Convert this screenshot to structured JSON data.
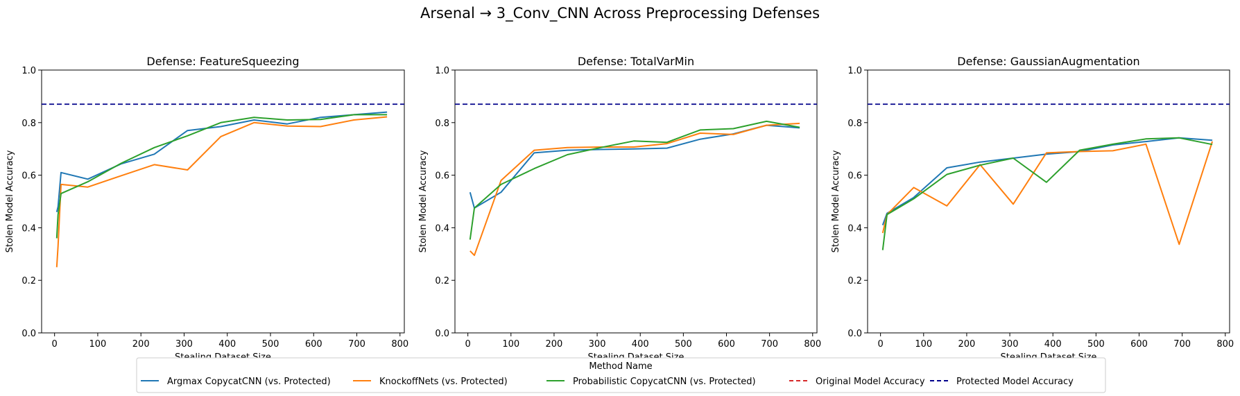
{
  "figure": {
    "title": "Arsenal → 3_Conv_CNN Across Preprocessing Defenses"
  },
  "legend": {
    "title": "Method Name",
    "placement": "bottom-center",
    "entries": [
      {
        "label": "Argmax CopycatCNN (vs. Protected)",
        "color": "#1f77b4",
        "style": "solid"
      },
      {
        "label": "KnockoffNets (vs. Protected)",
        "color": "#ff7f0e",
        "style": "solid"
      },
      {
        "label": "Probabilistic CopycatCNN (vs. Protected)",
        "color": "#2ca02c",
        "style": "solid"
      },
      {
        "label": "Original Model Accuracy",
        "color": "#d62728",
        "style": "dashed"
      },
      {
        "label": "Protected Model Accuracy",
        "color": "#00008b",
        "style": "dashed"
      }
    ]
  },
  "chart_data": [
    {
      "type": "line",
      "title": "Defense: FeatureSqueezing",
      "xlabel": "Stealing Dataset Size",
      "ylabel": "Stolen Model Accuracy",
      "xlim": [
        -30,
        810
      ],
      "ylim": [
        0,
        1.0
      ],
      "xticks": [
        0,
        100,
        200,
        300,
        400,
        500,
        600,
        700,
        800
      ],
      "yticks": [
        0.0,
        0.2,
        0.4,
        0.6,
        0.8,
        1.0
      ],
      "hlines": [
        {
          "name": "Protected Model Accuracy",
          "y": 0.87,
          "color": "#00008b"
        }
      ],
      "series": [
        {
          "name": "Argmax CopycatCNN (vs. Protected)",
          "color": "#1f77b4",
          "x": [
            5,
            8,
            15,
            77,
            154,
            231,
            308,
            385,
            462,
            539,
            616,
            693,
            770
          ],
          "y": [
            0.46,
            0.48,
            0.61,
            0.585,
            0.643,
            0.68,
            0.77,
            0.785,
            0.81,
            0.795,
            0.82,
            0.83,
            0.84
          ]
        },
        {
          "name": "KnockoffNets (vs. Protected)",
          "color": "#ff7f0e",
          "x": [
            5,
            8,
            15,
            77,
            154,
            231,
            308,
            385,
            462,
            539,
            616,
            693,
            770
          ],
          "y": [
            0.25,
            0.33,
            0.565,
            0.555,
            0.598,
            0.64,
            0.62,
            0.747,
            0.8,
            0.787,
            0.785,
            0.81,
            0.822
          ]
        },
        {
          "name": "Probabilistic CopycatCNN (vs. Protected)",
          "color": "#2ca02c",
          "x": [
            5,
            8,
            15,
            77,
            154,
            231,
            308,
            385,
            462,
            539,
            616,
            693,
            770
          ],
          "y": [
            0.36,
            0.45,
            0.53,
            0.575,
            0.645,
            0.705,
            0.75,
            0.8,
            0.82,
            0.81,
            0.812,
            0.83,
            0.83
          ]
        }
      ]
    },
    {
      "type": "line",
      "title": "Defense: TotalVarMin",
      "xlabel": "Stealing Dataset Size",
      "ylabel": "Stolen Model Accuracy",
      "xlim": [
        -30,
        810
      ],
      "ylim": [
        0,
        1.0
      ],
      "xticks": [
        0,
        100,
        200,
        300,
        400,
        500,
        600,
        700,
        800
      ],
      "yticks": [
        0.0,
        0.2,
        0.4,
        0.6,
        0.8,
        1.0
      ],
      "hlines": [
        {
          "name": "Protected Model Accuracy",
          "y": 0.87,
          "color": "#00008b"
        }
      ],
      "series": [
        {
          "name": "Argmax CopycatCNN (vs. Protected)",
          "color": "#1f77b4",
          "x": [
            5,
            15,
            77,
            154,
            231,
            308,
            385,
            462,
            539,
            616,
            693,
            770
          ],
          "y": [
            0.535,
            0.475,
            0.535,
            0.685,
            0.695,
            0.698,
            0.7,
            0.703,
            0.737,
            0.757,
            0.79,
            0.78
          ]
        },
        {
          "name": "KnockoffNets (vs. Protected)",
          "color": "#ff7f0e",
          "x": [
            5,
            15,
            77,
            154,
            231,
            308,
            385,
            462,
            539,
            616,
            693,
            770
          ],
          "y": [
            0.312,
            0.295,
            0.58,
            0.695,
            0.705,
            0.707,
            0.707,
            0.72,
            0.76,
            0.755,
            0.79,
            0.797
          ]
        },
        {
          "name": "Probabilistic CopycatCNN (vs. Protected)",
          "color": "#2ca02c",
          "x": [
            5,
            15,
            77,
            154,
            231,
            308,
            385,
            462,
            539,
            616,
            693,
            770
          ],
          "y": [
            0.355,
            0.475,
            0.565,
            0.625,
            0.678,
            0.705,
            0.73,
            0.725,
            0.772,
            0.777,
            0.805,
            0.782
          ]
        }
      ]
    },
    {
      "type": "line",
      "title": "Defense: GaussianAugmentation",
      "xlabel": "Stealing Dataset Size",
      "ylabel": "Stolen Model Accuracy",
      "xlim": [
        -30,
        810
      ],
      "ylim": [
        0,
        1.0
      ],
      "xticks": [
        0,
        100,
        200,
        300,
        400,
        500,
        600,
        700,
        800
      ],
      "yticks": [
        0.0,
        0.2,
        0.4,
        0.6,
        0.8,
        1.0
      ],
      "hlines": [
        {
          "name": "Protected Model Accuracy",
          "y": 0.87,
          "color": "#00008b"
        }
      ],
      "series": [
        {
          "name": "Argmax CopycatCNN (vs. Protected)",
          "color": "#1f77b4",
          "x": [
            5,
            15,
            77,
            154,
            231,
            308,
            385,
            462,
            539,
            616,
            693,
            770
          ],
          "y": [
            0.41,
            0.455,
            0.515,
            0.628,
            0.65,
            0.665,
            0.68,
            0.69,
            0.715,
            0.728,
            0.742,
            0.733
          ]
        },
        {
          "name": "KnockoffNets (vs. Protected)",
          "color": "#ff7f0e",
          "x": [
            5,
            15,
            77,
            154,
            231,
            308,
            385,
            462,
            539,
            616,
            693,
            770
          ],
          "y": [
            0.38,
            0.45,
            0.553,
            0.483,
            0.64,
            0.49,
            0.685,
            0.69,
            0.693,
            0.718,
            0.337,
            0.728
          ]
        },
        {
          "name": "Probabilistic CopycatCNN (vs. Protected)",
          "color": "#2ca02c",
          "x": [
            5,
            15,
            77,
            154,
            231,
            308,
            385,
            462,
            539,
            616,
            693,
            770
          ],
          "y": [
            0.315,
            0.45,
            0.51,
            0.603,
            0.638,
            0.665,
            0.573,
            0.695,
            0.718,
            0.738,
            0.742,
            0.717
          ]
        }
      ]
    }
  ]
}
